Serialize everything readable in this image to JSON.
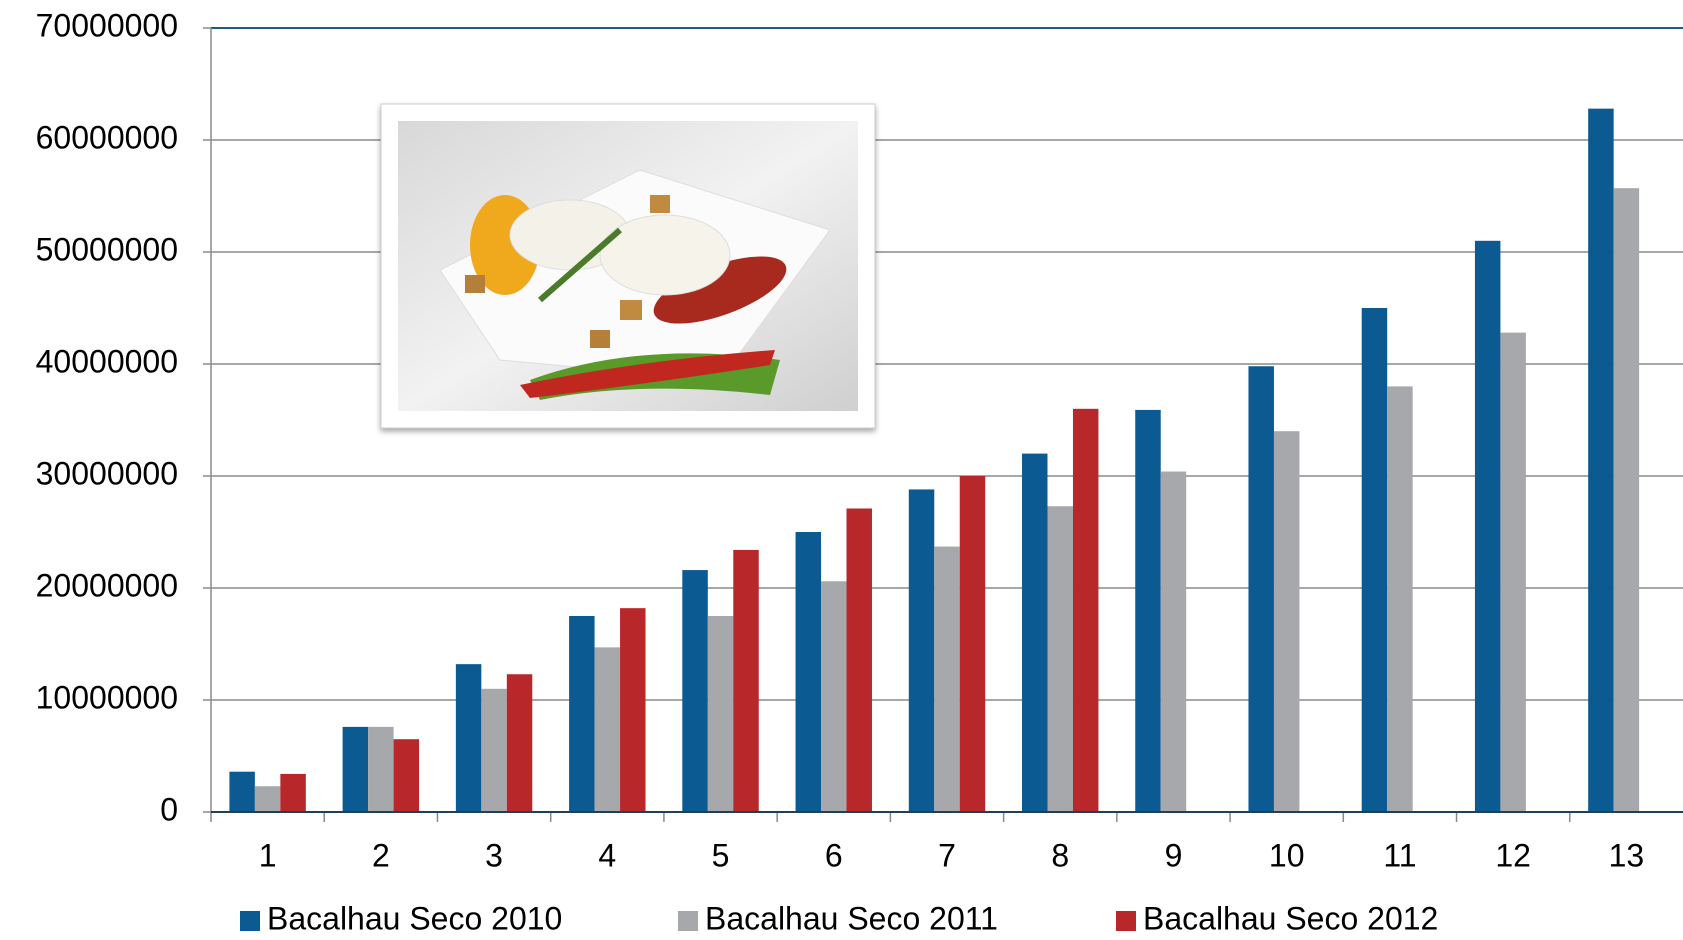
{
  "chart_data": {
    "type": "bar",
    "categories": [
      "1",
      "2",
      "3",
      "4",
      "5",
      "6",
      "7",
      "8",
      "9",
      "10",
      "11",
      "12",
      "13"
    ],
    "series": [
      {
        "name": "Bacalhau Seco 2010",
        "color": "#0b5a92",
        "values": [
          3600000,
          7600000,
          13200000,
          17500000,
          21600000,
          25000000,
          28800000,
          32000000,
          35900000,
          39800000,
          45000000,
          51000000,
          62800000
        ]
      },
      {
        "name": "Bacalhau Seco 2011",
        "color": "#a6a8ab",
        "values": [
          2300000,
          7600000,
          11000000,
          14700000,
          17500000,
          20600000,
          23700000,
          27300000,
          30400000,
          34000000,
          38000000,
          42800000,
          55700000
        ]
      },
      {
        "name": "Bacalhau Seco 2012",
        "color": "#b8282a",
        "values": [
          3400000,
          6500000,
          12300000,
          18200000,
          23400000,
          27100000,
          30000000,
          36000000,
          null,
          null,
          null,
          null,
          null
        ]
      }
    ],
    "ylim": [
      0,
      70000000
    ],
    "yticks": [
      0,
      10000000,
      20000000,
      30000000,
      40000000,
      50000000,
      60000000,
      70000000
    ],
    "grid": true,
    "legend": "bottom"
  }
}
